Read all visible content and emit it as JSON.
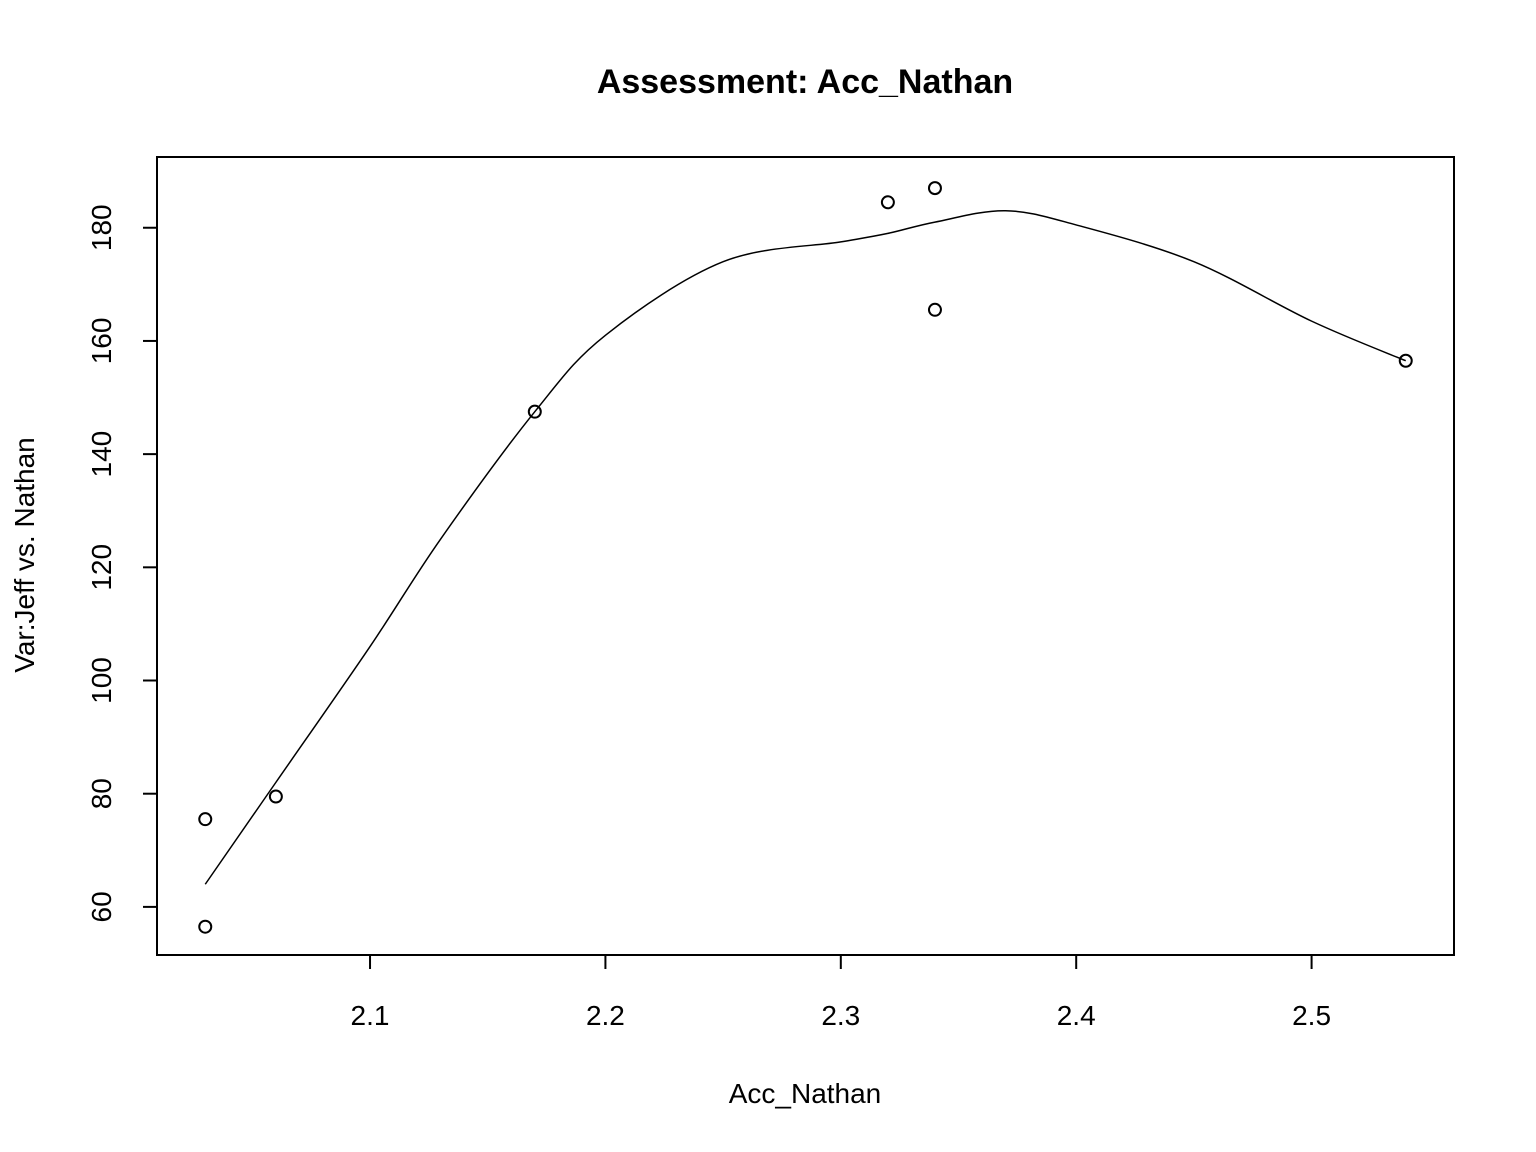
{
  "chart_data": {
    "type": "scatter",
    "title": "Assessment: Acc_Nathan",
    "xlabel": "Acc_Nathan",
    "ylabel": "Var:Jeff vs. Nathan",
    "xlim": [
      2.0095,
      2.5605
    ],
    "ylim": [
      51.5,
      192.5
    ],
    "x_ticks": [
      2.1,
      2.2,
      2.3,
      2.4,
      2.5
    ],
    "x_tick_labels": [
      "2.1",
      "2.2",
      "2.3",
      "2.4",
      "2.5"
    ],
    "y_ticks": [
      60,
      80,
      100,
      120,
      140,
      160,
      180
    ],
    "y_tick_labels": [
      "60",
      "80",
      "100",
      "120",
      "140",
      "160",
      "180"
    ],
    "grid": false,
    "legend": false,
    "points": [
      {
        "x": 2.03,
        "y": 75.5
      },
      {
        "x": 2.03,
        "y": 56.5
      },
      {
        "x": 2.06,
        "y": 79.5
      },
      {
        "x": 2.17,
        "y": 147.5
      },
      {
        "x": 2.32,
        "y": 184.5
      },
      {
        "x": 2.34,
        "y": 187.0
      },
      {
        "x": 2.34,
        "y": 165.5
      },
      {
        "x": 2.54,
        "y": 156.5
      }
    ],
    "smooth_line": [
      {
        "x": 2.03,
        "y": 64.0
      },
      {
        "x": 2.06,
        "y": 82.0
      },
      {
        "x": 2.1,
        "y": 106.0
      },
      {
        "x": 2.13,
        "y": 125.0
      },
      {
        "x": 2.17,
        "y": 147.5
      },
      {
        "x": 2.2,
        "y": 161.0
      },
      {
        "x": 2.25,
        "y": 174.0
      },
      {
        "x": 2.3,
        "y": 177.5
      },
      {
        "x": 2.32,
        "y": 179.0
      },
      {
        "x": 2.34,
        "y": 181.0
      },
      {
        "x": 2.37,
        "y": 183.0
      },
      {
        "x": 2.4,
        "y": 180.5
      },
      {
        "x": 2.45,
        "y": 174.0
      },
      {
        "x": 2.5,
        "y": 163.5
      },
      {
        "x": 2.54,
        "y": 156.5
      }
    ]
  }
}
